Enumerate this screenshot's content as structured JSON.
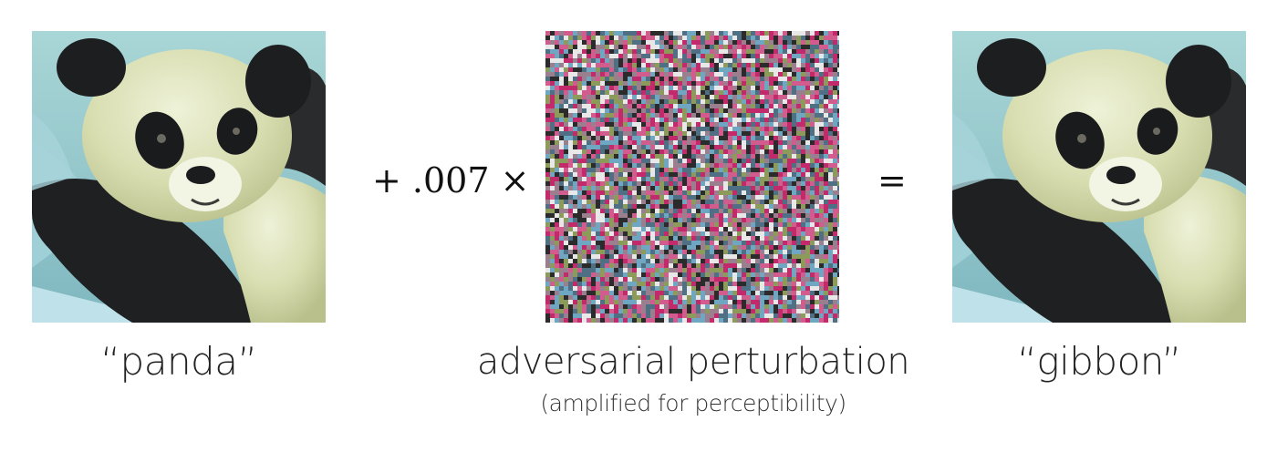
{
  "operators": {
    "plus_expr": "+ .007 ×",
    "equals": "="
  },
  "captions": {
    "original": "“panda”",
    "perturbation": "adversarial perturbation",
    "perturbation_note": "(amplified for perceptibility)",
    "result": "“gibbon”"
  },
  "colors": {
    "noise_palette": [
      "#c22a6b",
      "#6fa7c2",
      "#2b2b2b",
      "#e8e8e8",
      "#8c9a5a",
      "#d35c8f",
      "#4f6f84",
      "#9a7f8f"
    ]
  }
}
